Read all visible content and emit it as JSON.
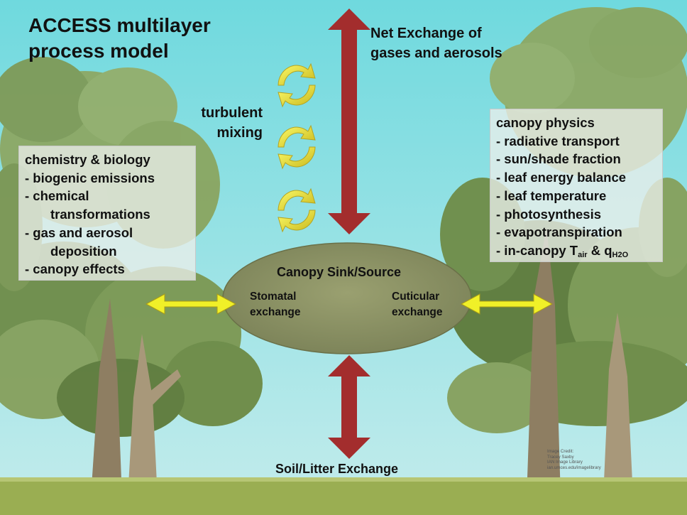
{
  "title": [
    "ACCESS multilayer",
    "process model"
  ],
  "net_exchange": [
    "Net Exchange of",
    "gases and aerosols"
  ],
  "turbulent_mixing": [
    "turbulent",
    "mixing"
  ],
  "left_box": {
    "lines": [
      "chemistry & biology",
      "- biogenic emissions",
      "- chemical",
      "transformations",
      "- gas and aerosol",
      "deposition",
      "- canopy effects"
    ]
  },
  "right_box": {
    "lines": [
      "canopy physics",
      "- radiative transport",
      "- sun/shade fraction",
      "- leaf energy balance",
      "- leaf temperature",
      "- photosynthesis",
      "- evapotranspiration"
    ],
    "last_line": {
      "prefix": "- in-canopy T",
      "sub1": "air",
      "mid": " & q",
      "sub2": "H2O"
    }
  },
  "canopy": {
    "title": "Canopy Sink/Source",
    "stomatal": [
      "Stomatal",
      "exchange"
    ],
    "cuticular": [
      "Cuticular",
      "exchange"
    ]
  },
  "soil": "Soil/Litter Exchange",
  "credit": [
    "Image Credit:",
    "Tracey Saxby",
    "IAN Image Library",
    "ian.umces.edu/imagelibrary"
  ],
  "colors": {
    "sky_top": "#6fd9de",
    "sky_bottom": "#c4ecec",
    "ground": "#9aae52",
    "arrow_red": "#a32d2d",
    "arrow_yellow": "#f0f028",
    "ellipse": "#8c9365",
    "foliage_dark": "#5e7a3a",
    "foliage_light": "#8da864",
    "trunk": "#9b8a6e"
  }
}
